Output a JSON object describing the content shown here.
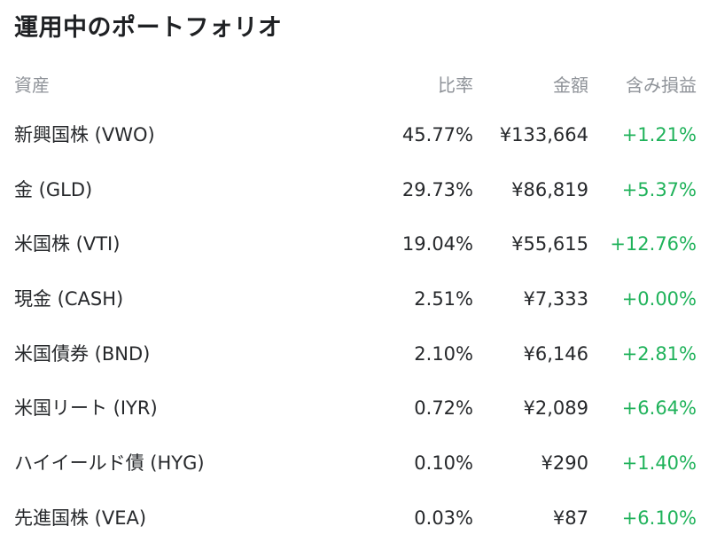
{
  "page": {
    "title": "運用中のポートフォリオ"
  },
  "columns": {
    "asset": "資産",
    "ratio": "比率",
    "amount": "金額",
    "unrealized_gain": "含み損益"
  },
  "holdings": [
    {
      "name": "新興国株 (VWO)",
      "ratio": "45.77%",
      "amount": "¥133,664",
      "gain": "+1.21%"
    },
    {
      "name": "金 (GLD)",
      "ratio": "29.73%",
      "amount": "¥86,819",
      "gain": "+5.37%"
    },
    {
      "name": "米国株 (VTI)",
      "ratio": "19.04%",
      "amount": "¥55,615",
      "gain": "+12.76%"
    },
    {
      "name": "現金 (CASH)",
      "ratio": "2.51%",
      "amount": "¥7,333",
      "gain": "+0.00%"
    },
    {
      "name": "米国債券 (BND)",
      "ratio": "2.10%",
      "amount": "¥6,146",
      "gain": "+2.81%"
    },
    {
      "name": "米国リート (IYR)",
      "ratio": "0.72%",
      "amount": "¥2,089",
      "gain": "+6.64%"
    },
    {
      "name": "ハイイールド債 (HYG)",
      "ratio": "0.10%",
      "amount": "¥290",
      "gain": "+1.40%"
    },
    {
      "name": "先進国株 (VEA)",
      "ratio": "0.03%",
      "amount": "¥87",
      "gain": "+6.10%"
    }
  ],
  "colors": {
    "gain_positive": "#1fb25a",
    "header_text": "#8f9399",
    "body_text": "#26282b"
  }
}
